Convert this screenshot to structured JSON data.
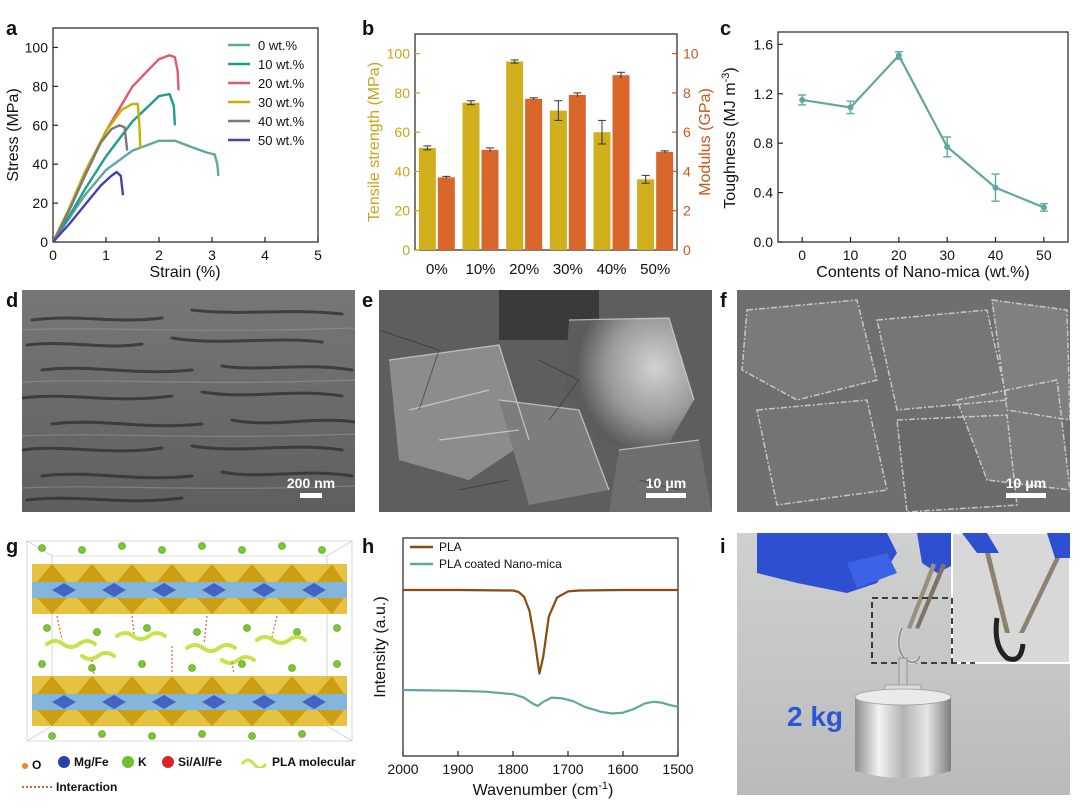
{
  "panels": {
    "a": "a",
    "b": "b",
    "c": "c",
    "d": "d",
    "e": "e",
    "f": "f",
    "g": "g",
    "h": "h",
    "i": "i"
  },
  "chart_data": [
    {
      "id": "a",
      "type": "line",
      "title": "",
      "xlabel": "Strain (%)",
      "ylabel": "Stress (MPa)",
      "xlim": [
        0,
        5
      ],
      "ylim": [
        0,
        110
      ],
      "xticks": [
        0,
        1,
        2,
        3,
        4,
        5
      ],
      "yticks": [
        0,
        20,
        40,
        60,
        80,
        100
      ],
      "legend_position": "top-right",
      "series": [
        {
          "name": "0  wt.%",
          "color": "#5fa89f",
          "x": [
            0,
            0.3,
            0.6,
            1.0,
            1.5,
            2.0,
            2.3,
            2.6,
            2.9,
            3.05,
            3.1,
            3.12
          ],
          "y": [
            0,
            12,
            24,
            37,
            47,
            52,
            52,
            49,
            46,
            45,
            40,
            34
          ]
        },
        {
          "name": "10 wt.%",
          "color": "#1f9d8f",
          "x": [
            0,
            0.3,
            0.6,
            1.0,
            1.5,
            2.0,
            2.2,
            2.28,
            2.3
          ],
          "y": [
            0,
            13,
            27,
            44,
            62,
            75,
            76,
            70,
            60
          ]
        },
        {
          "name": "20 wt.%",
          "color": "#e05a6e",
          "x": [
            0,
            0.3,
            0.6,
            1.0,
            1.5,
            2.0,
            2.2,
            2.3,
            2.35,
            2.37
          ],
          "y": [
            0,
            16,
            34,
            57,
            80,
            94,
            96,
            95,
            88,
            78
          ]
        },
        {
          "name": "30 wt.%",
          "color": "#c9b000",
          "x": [
            0,
            0.3,
            0.6,
            1.0,
            1.3,
            1.5,
            1.6,
            1.63,
            1.65
          ],
          "y": [
            0,
            17,
            36,
            57,
            68,
            71,
            71,
            60,
            48
          ]
        },
        {
          "name": "40 wt.%",
          "color": "#7a7a7a",
          "x": [
            0,
            0.3,
            0.6,
            0.9,
            1.1,
            1.25,
            1.35,
            1.38,
            1.4
          ],
          "y": [
            0,
            16,
            34,
            51,
            58,
            60,
            59,
            52,
            47
          ]
        },
        {
          "name": "50 wt.%",
          "color": "#4b3fae",
          "x": [
            0,
            0.3,
            0.6,
            0.9,
            1.1,
            1.2,
            1.28,
            1.32
          ],
          "y": [
            0,
            9,
            19,
            29,
            34,
            36,
            34,
            24
          ]
        }
      ]
    },
    {
      "id": "b",
      "type": "bar",
      "title": "",
      "categories": [
        "0%",
        "10%",
        "20%",
        "30%",
        "40%",
        "50%"
      ],
      "ylabel": "Tensile strength (MPa)",
      "ylabel_right": "Modulus (GPa)",
      "ylim": [
        0,
        110
      ],
      "ylim_right": [
        0,
        11
      ],
      "yticks": [
        0,
        20,
        40,
        60,
        80,
        100
      ],
      "yticks_right": [
        0,
        2,
        4,
        6,
        8,
        10
      ],
      "series": [
        {
          "name": "Tensile strength",
          "axis": "left",
          "color": "#d1ae1c",
          "values": [
            52,
            75,
            96,
            71,
            60,
            36
          ],
          "errors": [
            1,
            1,
            0.8,
            5,
            6,
            2
          ]
        },
        {
          "name": "Modulus",
          "axis": "right",
          "color": "#d9662a",
          "values": [
            3.7,
            5.1,
            7.7,
            7.9,
            8.9,
            5.0
          ],
          "errors": [
            0.05,
            0.1,
            0.05,
            0.1,
            0.15,
            0.05
          ]
        }
      ]
    },
    {
      "id": "c",
      "type": "line",
      "title": "",
      "xlabel": "Contents of Nano-mica (wt.%)",
      "ylabel": "Toughness (MJ m",
      "ylabel_sup": "-3",
      "ylabel_end": ")",
      "xlim": [
        -5,
        55
      ],
      "ylim": [
        0,
        1.7
      ],
      "xticks": [
        0,
        10,
        20,
        30,
        40,
        50
      ],
      "yticks": [
        "0.0",
        "0.4",
        "0.8",
        "1.2",
        "1.6"
      ],
      "color": "#5fa89f",
      "x": [
        0,
        10,
        20,
        30,
        40,
        50
      ],
      "y": [
        1.15,
        1.09,
        1.51,
        0.77,
        0.44,
        0.28
      ],
      "errors": [
        0.04,
        0.05,
        0.03,
        0.08,
        0.11,
        0.03
      ]
    },
    {
      "id": "h",
      "type": "line",
      "title": "",
      "xlabel": "Wavenumber (cm",
      "xlabel_sup": "-1",
      "xlabel_end": ")",
      "ylabel": "Intensity (a.u.)",
      "xlim": [
        2000,
        1500
      ],
      "xticks": [
        2000,
        1900,
        1800,
        1700,
        1600,
        1500
      ],
      "legend_position": "top-left",
      "series": [
        {
          "name": "PLA",
          "color": "#8a4a12",
          "x": [
            2000,
            1900,
            1800,
            1790,
            1780,
            1770,
            1760,
            1752,
            1745,
            1735,
            1720,
            1700,
            1680,
            1600,
            1500
          ],
          "y": [
            1.0,
            1.0,
            0.995,
            0.98,
            0.93,
            0.78,
            0.45,
            0.12,
            0.3,
            0.72,
            0.92,
            0.985,
            0.995,
            1.0,
            1.0
          ]
        },
        {
          "name": "PLA coated Nano-mica",
          "color": "#5fa89f",
          "x": [
            2000,
            1950,
            1900,
            1850,
            1800,
            1780,
            1765,
            1755,
            1745,
            1730,
            1710,
            1690,
            1670,
            1640,
            1620,
            1600,
            1580,
            1560,
            1545,
            1530,
            1515,
            1500
          ],
          "y": [
            1.0,
            0.99,
            0.98,
            0.96,
            0.9,
            0.82,
            0.68,
            0.62,
            0.72,
            0.82,
            0.8,
            0.73,
            0.6,
            0.48,
            0.44,
            0.46,
            0.55,
            0.68,
            0.72,
            0.7,
            0.64,
            0.6
          ]
        }
      ]
    }
  ],
  "sem_d": {
    "scale": "200 nm"
  },
  "sem_e": {
    "scale": "10 μm"
  },
  "sem_f": {
    "scale": "10 μm"
  },
  "structure_g": {
    "legend": [
      {
        "label": "O",
        "color": "#e8862a",
        "symbol": "dot"
      },
      {
        "label": "Mg/Fe",
        "color": "#2f3fa6",
        "symbol": "ball"
      },
      {
        "label": "K",
        "color": "#6fbf2a",
        "symbol": "ball"
      },
      {
        "label": "Si/Al/Fe",
        "color": "#d9252a",
        "symbol": "ball"
      },
      {
        "label": "PLA molecular",
        "color": "#c7e24a",
        "symbol": "wave"
      },
      {
        "label": "Interaction",
        "color": "#d9632a",
        "symbol": "dash"
      }
    ]
  },
  "photo_i": {
    "weight_label": "2 kg"
  }
}
